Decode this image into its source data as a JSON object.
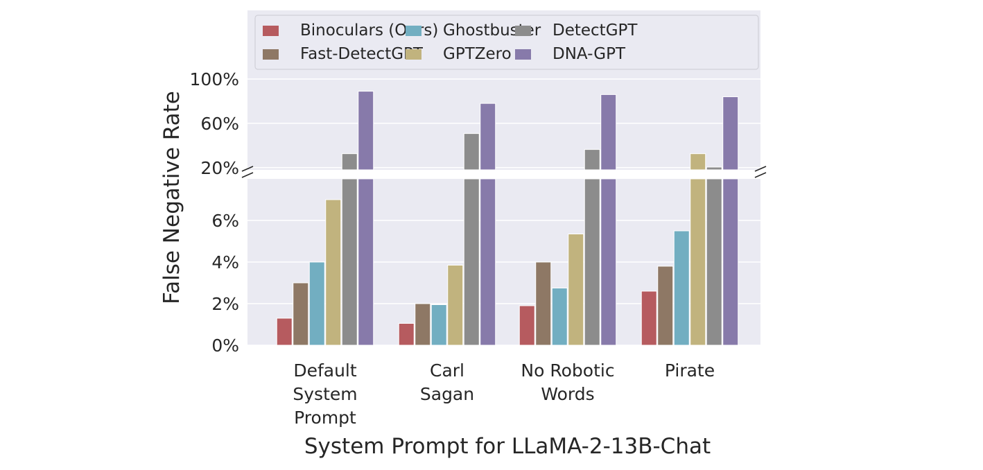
{
  "chart_data": {
    "type": "bar",
    "title": "",
    "xlabel": "System Prompt for LLaMA-2-13B-Chat",
    "ylabel": "False Negative Rate",
    "broken_axis": true,
    "lower_ylim": [
      0,
      8
    ],
    "upper_ylim": [
      18,
      162
    ],
    "lower_ticks": [
      "0%",
      "2%",
      "4%",
      "6%"
    ],
    "lower_tick_values": [
      0,
      2,
      4,
      6
    ],
    "upper_ticks": [
      "20%",
      "60%",
      "100%"
    ],
    "upper_tick_values": [
      20,
      60,
      100
    ],
    "grid": true,
    "legend_placement": "top",
    "categories": [
      [
        "Default",
        "System",
        "Prompt"
      ],
      [
        "Carl",
        "Sagan"
      ],
      [
        "No Robotic",
        "Words"
      ],
      [
        "Pirate"
      ]
    ],
    "series": [
      {
        "name": "Binoculars (Ours)",
        "color": "#b65b5f",
        "values": [
          1.3,
          1.05,
          1.9,
          2.6
        ]
      },
      {
        "name": "Fast-DetectGPT",
        "color": "#8e7865",
        "values": [
          3.0,
          2.0,
          4.0,
          3.8
        ]
      },
      {
        "name": "Ghostbuster",
        "color": "#72aec1",
        "values": [
          4.0,
          1.95,
          2.75,
          5.5
        ]
      },
      {
        "name": "GPTZero",
        "color": "#c1b37e",
        "values": [
          7.0,
          3.85,
          5.35,
          32.6
        ]
      },
      {
        "name": "DetectGPT",
        "color": "#8c8c8c",
        "values": [
          32.6,
          50.8,
          36.4,
          20.5
        ]
      },
      {
        "name": "DNA-GPT",
        "color": "#877aaa",
        "values": [
          89,
          78,
          86,
          84
        ]
      }
    ]
  }
}
